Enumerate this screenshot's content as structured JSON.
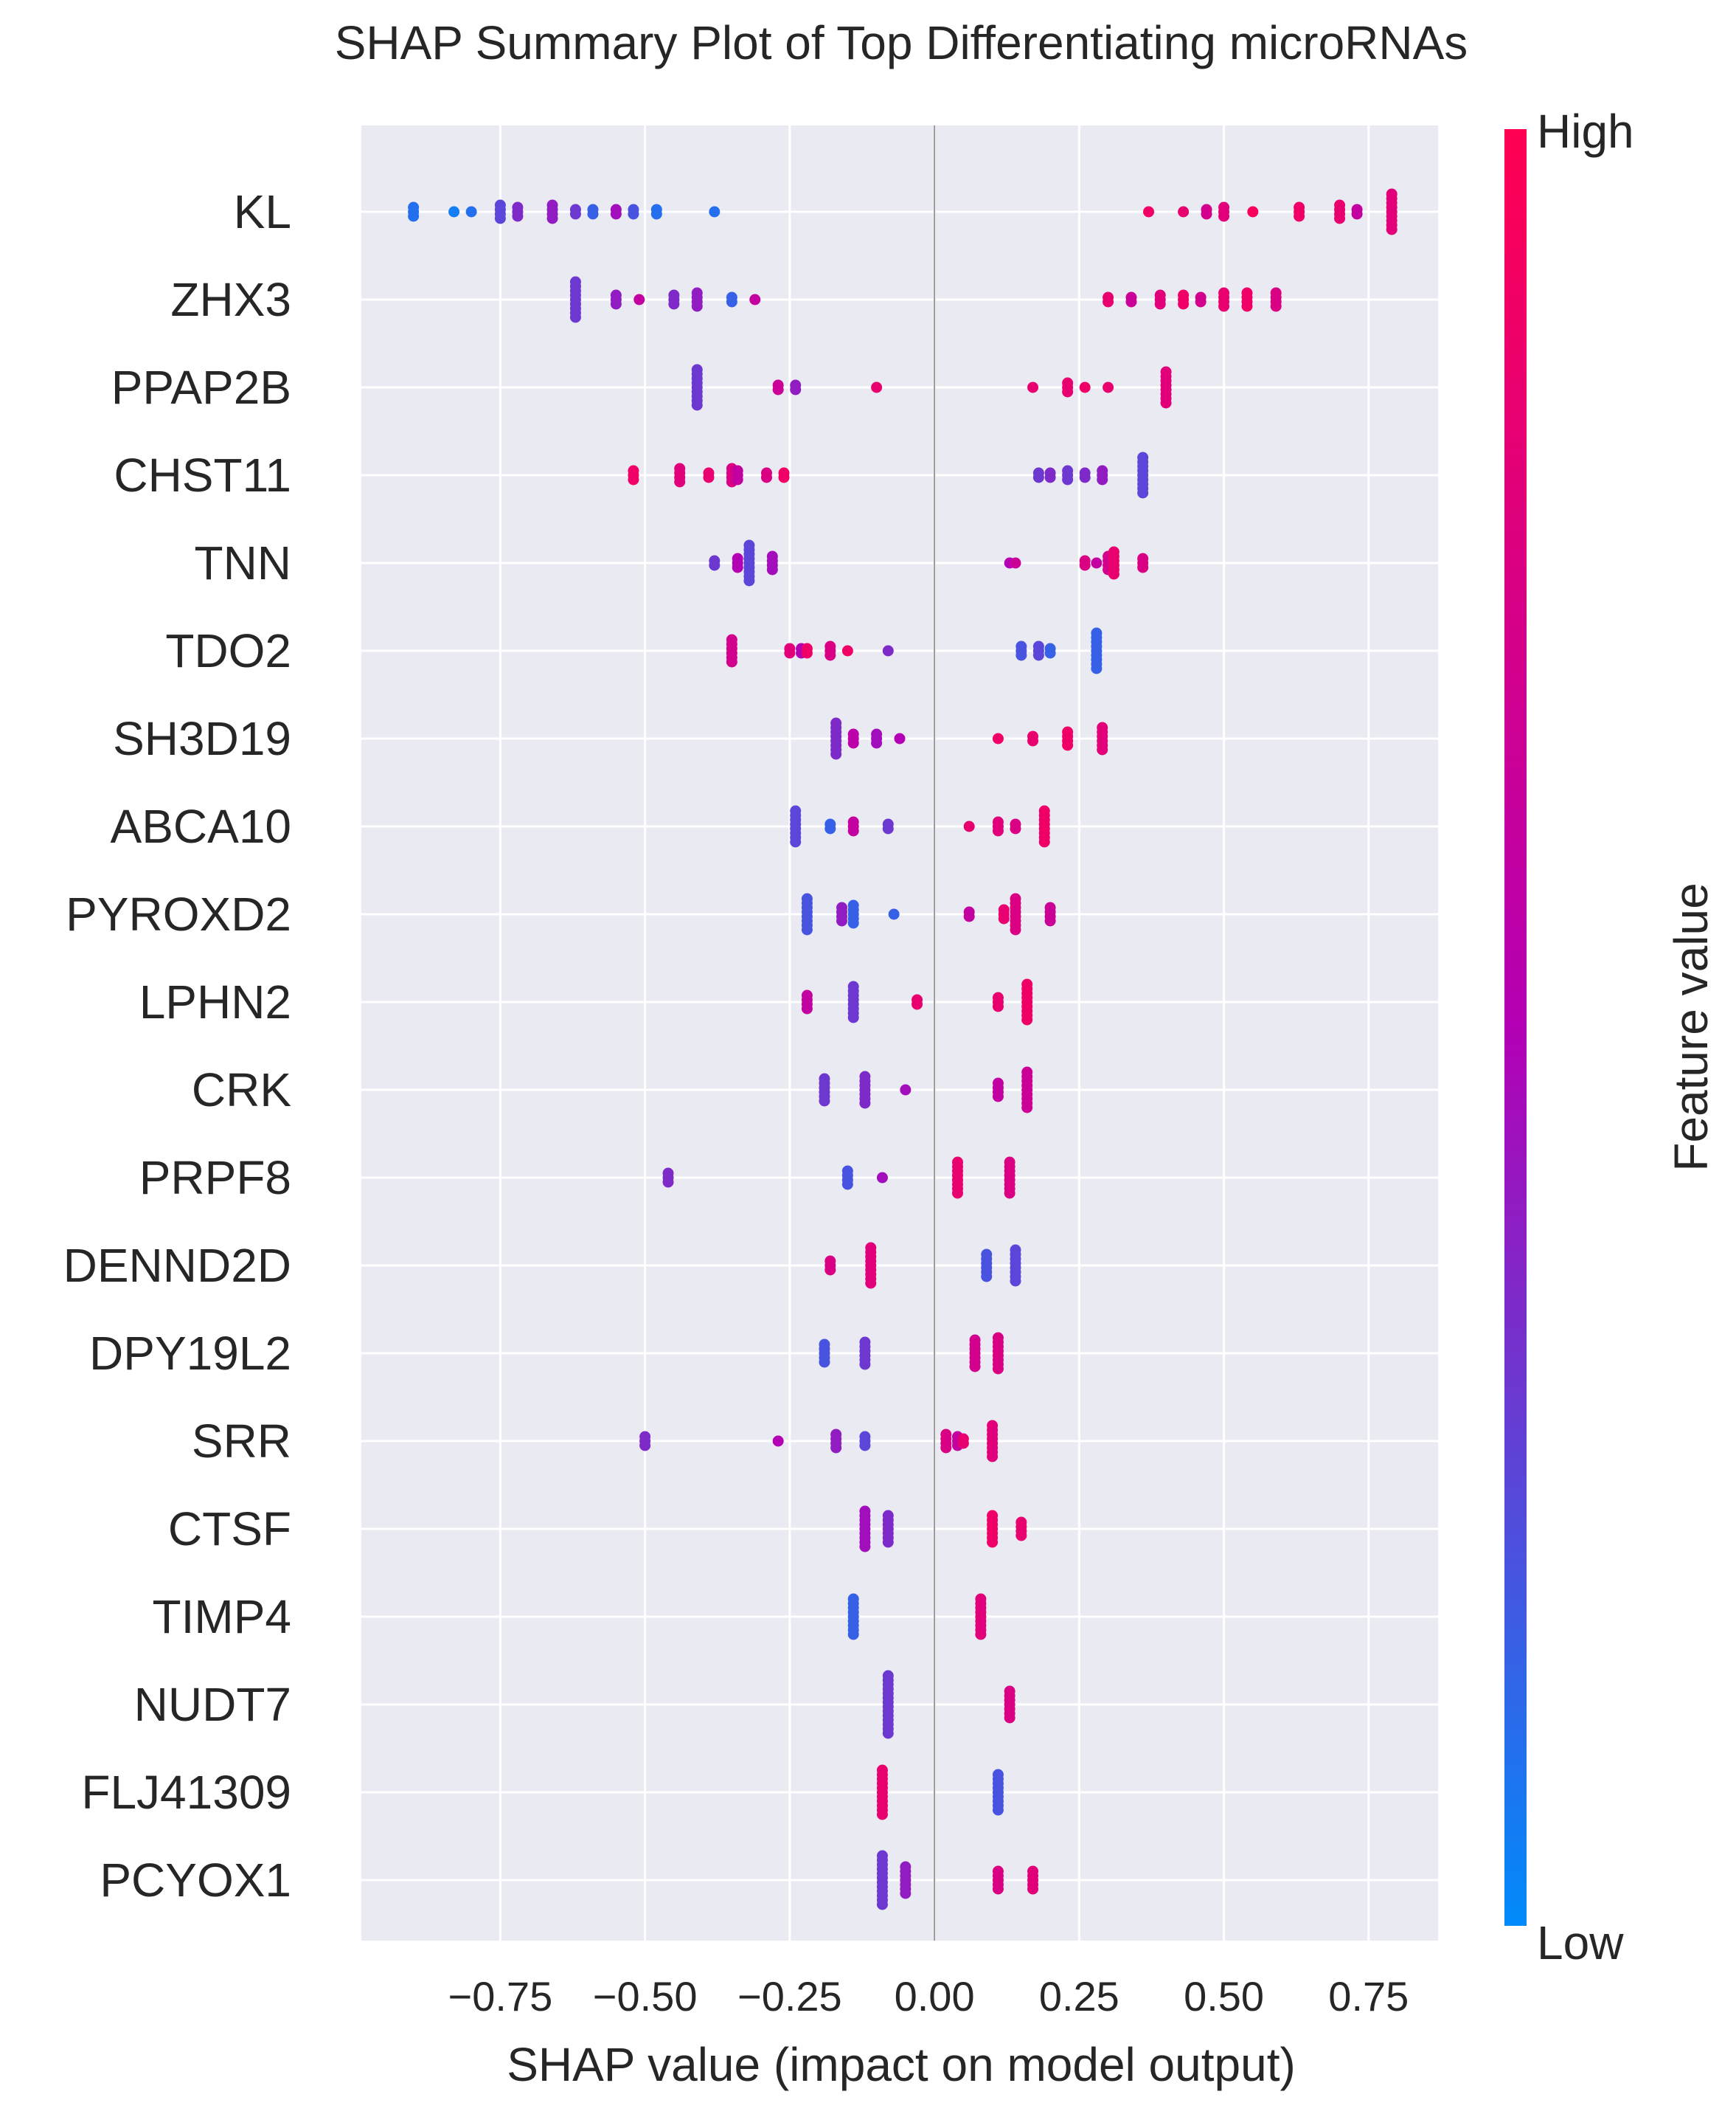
{
  "chart_data": {
    "type": "scatter",
    "title": "SHAP Summary Plot of Top Differentiating microRNAs",
    "xlabel": "SHAP value (impact on model output)",
    "ylabel": "",
    "xlim": [
      -0.99,
      0.87
    ],
    "xticks": [
      -0.75,
      -0.5,
      -0.25,
      0.0,
      0.25,
      0.5,
      0.75
    ],
    "xtick_labels": [
      "−0.75",
      "−0.50",
      "−0.25",
      "0.00",
      "0.25",
      "0.50",
      "0.75"
    ],
    "grid": true,
    "colorbar": {
      "label": "Feature value",
      "high_label": "High",
      "low_label": "Low",
      "low_color": "#008bfb",
      "mid_color": "#b400b4",
      "high_color": "#ff0052"
    },
    "features": [
      {
        "name": "KL",
        "points": [
          {
            "x": -0.9,
            "v": 0.1,
            "n": 3
          },
          {
            "x": -0.83,
            "v": 0.05,
            "n": 1
          },
          {
            "x": -0.8,
            "v": 0.1,
            "n": 1
          },
          {
            "x": -0.75,
            "v": 0.25,
            "n": 4
          },
          {
            "x": -0.72,
            "v": 0.35,
            "n": 3
          },
          {
            "x": -0.66,
            "v": 0.4,
            "n": 4
          },
          {
            "x": -0.62,
            "v": 0.3,
            "n": 2
          },
          {
            "x": -0.59,
            "v": 0.15,
            "n": 2
          },
          {
            "x": -0.55,
            "v": 0.45,
            "n": 2
          },
          {
            "x": -0.52,
            "v": 0.2,
            "n": 2
          },
          {
            "x": -0.48,
            "v": 0.1,
            "n": 2
          },
          {
            "x": -0.38,
            "v": 0.1,
            "n": 1
          },
          {
            "x": 0.37,
            "v": 0.9,
            "n": 1
          },
          {
            "x": 0.43,
            "v": 0.85,
            "n": 1
          },
          {
            "x": 0.47,
            "v": 0.7,
            "n": 2
          },
          {
            "x": 0.5,
            "v": 0.8,
            "n": 3
          },
          {
            "x": 0.55,
            "v": 0.95,
            "n": 1
          },
          {
            "x": 0.63,
            "v": 0.9,
            "n": 3
          },
          {
            "x": 0.7,
            "v": 0.85,
            "n": 4
          },
          {
            "x": 0.73,
            "v": 0.6,
            "n": 2
          },
          {
            "x": 0.79,
            "v": 0.8,
            "n": 9
          }
        ]
      },
      {
        "name": "ZHX3",
        "points": [
          {
            "x": -0.62,
            "v": 0.3,
            "n": 9
          },
          {
            "x": -0.55,
            "v": 0.4,
            "n": 3
          },
          {
            "x": -0.51,
            "v": 0.6,
            "n": 1
          },
          {
            "x": -0.45,
            "v": 0.35,
            "n": 3
          },
          {
            "x": -0.41,
            "v": 0.4,
            "n": 4
          },
          {
            "x": -0.35,
            "v": 0.15,
            "n": 2
          },
          {
            "x": -0.31,
            "v": 0.6,
            "n": 1
          },
          {
            "x": 0.3,
            "v": 0.85,
            "n": 2
          },
          {
            "x": 0.34,
            "v": 0.65,
            "n": 2
          },
          {
            "x": 0.39,
            "v": 0.8,
            "n": 3
          },
          {
            "x": 0.43,
            "v": 0.9,
            "n": 3
          },
          {
            "x": 0.46,
            "v": 0.7,
            "n": 2
          },
          {
            "x": 0.5,
            "v": 0.85,
            "n": 4
          },
          {
            "x": 0.54,
            "v": 0.9,
            "n": 4
          },
          {
            "x": 0.59,
            "v": 0.75,
            "n": 4
          }
        ]
      },
      {
        "name": "PPAP2B",
        "points": [
          {
            "x": -0.41,
            "v": 0.3,
            "n": 9
          },
          {
            "x": -0.27,
            "v": 0.65,
            "n": 2
          },
          {
            "x": -0.24,
            "v": 0.4,
            "n": 2
          },
          {
            "x": -0.1,
            "v": 0.85,
            "n": 1
          },
          {
            "x": 0.17,
            "v": 0.85,
            "n": 1
          },
          {
            "x": 0.23,
            "v": 0.85,
            "n": 3
          },
          {
            "x": 0.26,
            "v": 0.9,
            "n": 1
          },
          {
            "x": 0.3,
            "v": 0.85,
            "n": 1
          },
          {
            "x": 0.4,
            "v": 0.8,
            "n": 8
          }
        ]
      },
      {
        "name": "CHST11",
        "points": [
          {
            "x": -0.52,
            "v": 0.9,
            "n": 3
          },
          {
            "x": -0.44,
            "v": 0.8,
            "n": 4
          },
          {
            "x": -0.39,
            "v": 0.85,
            "n": 2
          },
          {
            "x": -0.35,
            "v": 0.75,
            "n": 4
          },
          {
            "x": -0.34,
            "v": 0.6,
            "n": 3
          },
          {
            "x": -0.29,
            "v": 0.75,
            "n": 2
          },
          {
            "x": -0.26,
            "v": 0.9,
            "n": 2
          },
          {
            "x": 0.18,
            "v": 0.3,
            "n": 2
          },
          {
            "x": 0.2,
            "v": 0.35,
            "n": 2
          },
          {
            "x": 0.23,
            "v": 0.3,
            "n": 3
          },
          {
            "x": 0.26,
            "v": 0.35,
            "n": 2
          },
          {
            "x": 0.29,
            "v": 0.4,
            "n": 3
          },
          {
            "x": 0.36,
            "v": 0.25,
            "n": 9
          }
        ]
      },
      {
        "name": "TNN",
        "points": [
          {
            "x": -0.38,
            "v": 0.3,
            "n": 2
          },
          {
            "x": -0.34,
            "v": 0.5,
            "n": 3
          },
          {
            "x": -0.32,
            "v": 0.25,
            "n": 9
          },
          {
            "x": -0.28,
            "v": 0.45,
            "n": 4
          },
          {
            "x": 0.13,
            "v": 0.5,
            "n": 1
          },
          {
            "x": 0.14,
            "v": 0.65,
            "n": 1
          },
          {
            "x": 0.26,
            "v": 0.75,
            "n": 2
          },
          {
            "x": 0.28,
            "v": 0.6,
            "n": 1
          },
          {
            "x": 0.3,
            "v": 0.7,
            "n": 4
          },
          {
            "x": 0.31,
            "v": 0.85,
            "n": 6
          },
          {
            "x": 0.36,
            "v": 0.75,
            "n": 3
          }
        ]
      },
      {
        "name": "TDO2",
        "points": [
          {
            "x": -0.35,
            "v": 0.7,
            "n": 6
          },
          {
            "x": -0.25,
            "v": 0.8,
            "n": 2
          },
          {
            "x": -0.23,
            "v": 0.5,
            "n": 2
          },
          {
            "x": -0.22,
            "v": 0.9,
            "n": 2
          },
          {
            "x": -0.18,
            "v": 0.75,
            "n": 3
          },
          {
            "x": -0.15,
            "v": 0.9,
            "n": 1
          },
          {
            "x": -0.08,
            "v": 0.35,
            "n": 1
          },
          {
            "x": 0.15,
            "v": 0.2,
            "n": 3
          },
          {
            "x": 0.18,
            "v": 0.25,
            "n": 3
          },
          {
            "x": 0.2,
            "v": 0.15,
            "n": 2
          },
          {
            "x": 0.28,
            "v": 0.15,
            "n": 9
          }
        ]
      },
      {
        "name": "SH3D19",
        "points": [
          {
            "x": -0.17,
            "v": 0.35,
            "n": 8
          },
          {
            "x": -0.14,
            "v": 0.55,
            "n": 3
          },
          {
            "x": -0.1,
            "v": 0.45,
            "n": 3
          },
          {
            "x": -0.06,
            "v": 0.5,
            "n": 1
          },
          {
            "x": 0.11,
            "v": 0.9,
            "n": 1
          },
          {
            "x": 0.17,
            "v": 0.85,
            "n": 2
          },
          {
            "x": 0.23,
            "v": 0.9,
            "n": 4
          },
          {
            "x": 0.29,
            "v": 0.8,
            "n": 6
          }
        ]
      },
      {
        "name": "ABCA10",
        "points": [
          {
            "x": -0.24,
            "v": 0.25,
            "n": 8
          },
          {
            "x": -0.18,
            "v": 0.15,
            "n": 2
          },
          {
            "x": -0.14,
            "v": 0.6,
            "n": 3
          },
          {
            "x": -0.08,
            "v": 0.3,
            "n": 2
          },
          {
            "x": 0.06,
            "v": 0.85,
            "n": 1
          },
          {
            "x": 0.11,
            "v": 0.8,
            "n": 3
          },
          {
            "x": 0.14,
            "v": 0.75,
            "n": 2
          },
          {
            "x": 0.19,
            "v": 0.9,
            "n": 8
          }
        ]
      },
      {
        "name": "PYROXD2",
        "points": [
          {
            "x": -0.22,
            "v": 0.2,
            "n": 8
          },
          {
            "x": -0.16,
            "v": 0.4,
            "n": 4
          },
          {
            "x": -0.14,
            "v": 0.15,
            "n": 5
          },
          {
            "x": -0.07,
            "v": 0.15,
            "n": 1
          },
          {
            "x": 0.06,
            "v": 0.6,
            "n": 2
          },
          {
            "x": 0.12,
            "v": 0.85,
            "n": 3
          },
          {
            "x": 0.14,
            "v": 0.75,
            "n": 8
          },
          {
            "x": 0.2,
            "v": 0.65,
            "n": 4
          }
        ]
      },
      {
        "name": "LPHN2",
        "points": [
          {
            "x": -0.22,
            "v": 0.6,
            "n": 4
          },
          {
            "x": -0.14,
            "v": 0.3,
            "n": 8
          },
          {
            "x": -0.03,
            "v": 0.85,
            "n": 2
          },
          {
            "x": 0.11,
            "v": 0.85,
            "n": 3
          },
          {
            "x": 0.16,
            "v": 0.9,
            "n": 9
          }
        ]
      },
      {
        "name": "CRK",
        "points": [
          {
            "x": -0.19,
            "v": 0.3,
            "n": 6
          },
          {
            "x": -0.12,
            "v": 0.35,
            "n": 7
          },
          {
            "x": -0.05,
            "v": 0.45,
            "n": 1
          },
          {
            "x": 0.11,
            "v": 0.6,
            "n": 4
          },
          {
            "x": 0.16,
            "v": 0.65,
            "n": 9
          }
        ]
      },
      {
        "name": "PRPF8",
        "points": [
          {
            "x": -0.46,
            "v": 0.35,
            "n": 3
          },
          {
            "x": -0.15,
            "v": 0.2,
            "n": 4
          },
          {
            "x": -0.09,
            "v": 0.45,
            "n": 1
          },
          {
            "x": 0.04,
            "v": 0.85,
            "n": 8
          },
          {
            "x": 0.13,
            "v": 0.75,
            "n": 8
          }
        ]
      },
      {
        "name": "DENND2D",
        "points": [
          {
            "x": -0.18,
            "v": 0.75,
            "n": 3
          },
          {
            "x": -0.11,
            "v": 0.8,
            "n": 9
          },
          {
            "x": 0.09,
            "v": 0.2,
            "n": 6
          },
          {
            "x": 0.14,
            "v": 0.25,
            "n": 8
          }
        ]
      },
      {
        "name": "DPY19L2",
        "points": [
          {
            "x": -0.19,
            "v": 0.2,
            "n": 5
          },
          {
            "x": -0.12,
            "v": 0.3,
            "n": 6
          },
          {
            "x": 0.07,
            "v": 0.7,
            "n": 7
          },
          {
            "x": 0.11,
            "v": 0.75,
            "n": 8
          }
        ]
      },
      {
        "name": "SRR",
        "points": [
          {
            "x": -0.5,
            "v": 0.35,
            "n": 3
          },
          {
            "x": -0.27,
            "v": 0.5,
            "n": 1
          },
          {
            "x": -0.17,
            "v": 0.4,
            "n": 4
          },
          {
            "x": -0.12,
            "v": 0.25,
            "n": 3
          },
          {
            "x": 0.02,
            "v": 0.75,
            "n": 4
          },
          {
            "x": 0.04,
            "v": 0.6,
            "n": 3
          },
          {
            "x": 0.05,
            "v": 0.85,
            "n": 2
          },
          {
            "x": 0.1,
            "v": 0.8,
            "n": 8
          }
        ]
      },
      {
        "name": "CTSF",
        "points": [
          {
            "x": -0.12,
            "v": 0.45,
            "n": 9
          },
          {
            "x": -0.08,
            "v": 0.35,
            "n": 7
          },
          {
            "x": 0.1,
            "v": 0.9,
            "n": 7
          },
          {
            "x": 0.15,
            "v": 0.85,
            "n": 4
          }
        ]
      },
      {
        "name": "TIMP4",
        "points": [
          {
            "x": -0.14,
            "v": 0.15,
            "n": 9
          },
          {
            "x": 0.08,
            "v": 0.8,
            "n": 9
          }
        ]
      },
      {
        "name": "NUDT7",
        "points": [
          {
            "x": -0.08,
            "v": 0.3,
            "n": 14
          },
          {
            "x": 0.13,
            "v": 0.75,
            "n": 7
          }
        ]
      },
      {
        "name": "FLJ41309",
        "points": [
          {
            "x": -0.09,
            "v": 0.85,
            "n": 11
          },
          {
            "x": 0.11,
            "v": 0.2,
            "n": 9
          }
        ]
      },
      {
        "name": "PCYOX1",
        "points": [
          {
            "x": -0.09,
            "v": 0.3,
            "n": 12
          },
          {
            "x": -0.05,
            "v": 0.4,
            "n": 7
          },
          {
            "x": 0.11,
            "v": 0.75,
            "n": 5
          },
          {
            "x": 0.17,
            "v": 0.8,
            "n": 5
          }
        ]
      }
    ]
  }
}
